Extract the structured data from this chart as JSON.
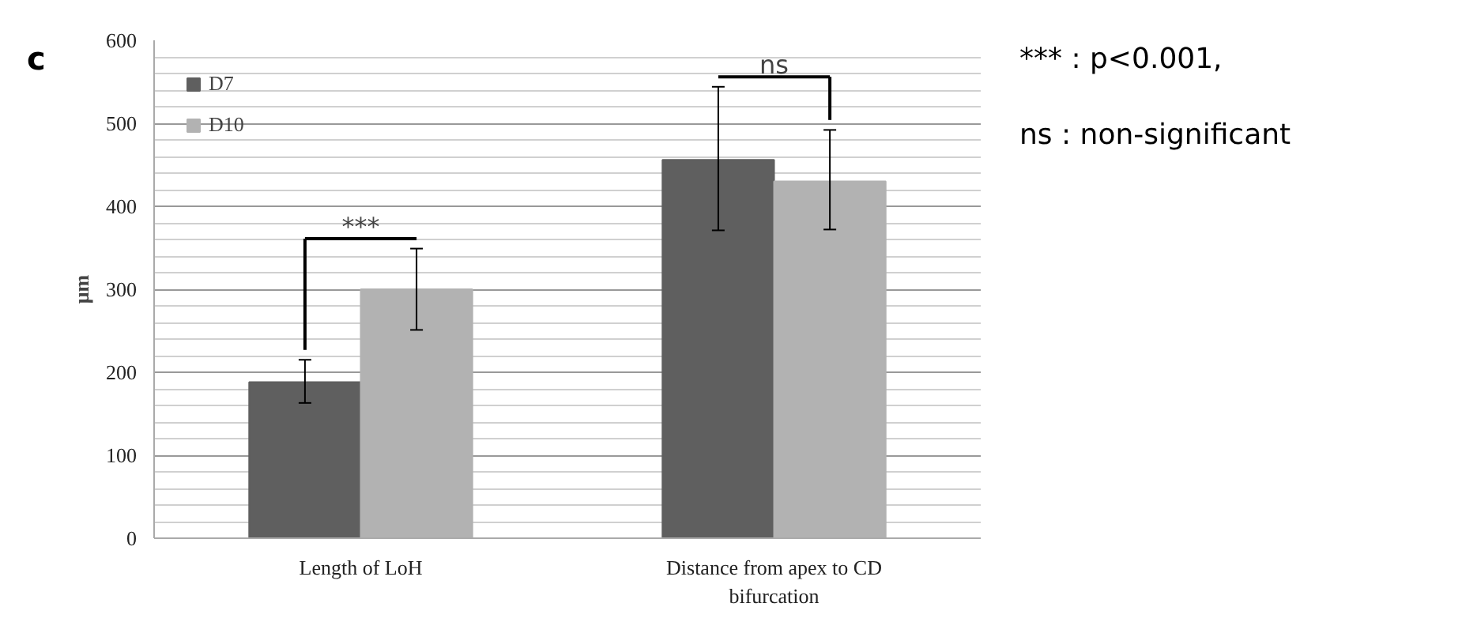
{
  "chart_data": {
    "type": "bar",
    "ylabel": "μm",
    "categories": [
      "Length of LoH",
      "Distance from apex to CD bifurcation"
    ],
    "series": [
      {
        "name": "D7",
        "color": "#5f5f5f",
        "values": [
          188,
          456
        ],
        "errors": [
          [
            163,
            215
          ],
          [
            371,
            544
          ]
        ]
      },
      {
        "name": "D10",
        "color": "#b2b2b2",
        "values": [
          300,
          430
        ],
        "errors": [
          [
            251,
            349
          ],
          [
            372,
            492
          ]
        ]
      }
    ],
    "ylim": [
      0,
      600
    ],
    "yticks": [
      0,
      100,
      200,
      300,
      400,
      500,
      600
    ],
    "grid": true,
    "legend": "top left",
    "annotations": [
      "***",
      "ns",
      "c",
      "*** : p<0.001,",
      "ns : non-significant"
    ]
  }
}
